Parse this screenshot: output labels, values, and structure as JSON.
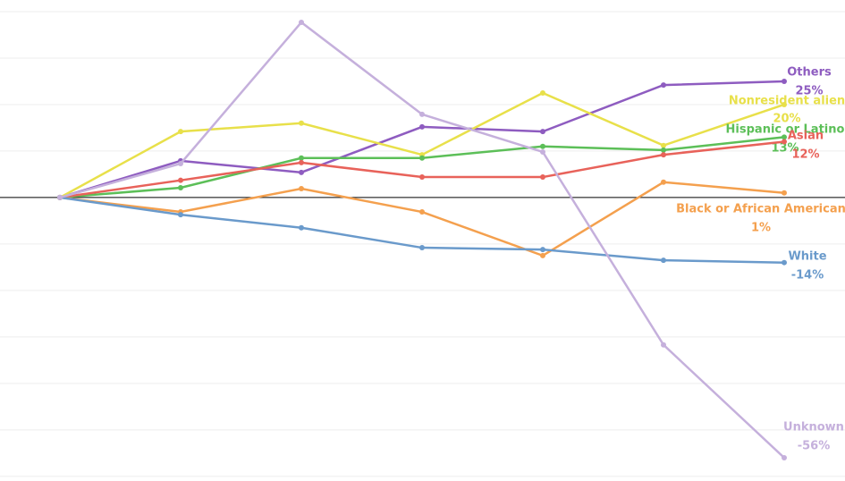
{
  "chart_data": {
    "type": "line",
    "categories": [
      null,
      null,
      null,
      null,
      null,
      null,
      null
    ],
    "ylim": [
      -61,
      42.5
    ],
    "yticks": [
      -60,
      -50,
      -40,
      -30,
      -20,
      -10,
      0,
      10,
      20,
      30,
      40
    ],
    "grid": true,
    "series": [
      {
        "name": "Others",
        "color": "#8e5cc0",
        "values": [
          0,
          7.9,
          5.4,
          15.2,
          14.2,
          24.2,
          25
        ],
        "value_labels": [
          null,
          null,
          null,
          null,
          null,
          null,
          "25%"
        ]
      },
      {
        "name": "Nonresident alien",
        "color": "#e8e04a",
        "values": [
          0,
          14.2,
          16.0,
          9.2,
          22.5,
          11.2,
          20
        ],
        "value_labels": [
          null,
          null,
          null,
          null,
          null,
          null,
          "20%"
        ]
      },
      {
        "name": "Hispanic or Latino",
        "color": "#5cbf58",
        "values": [
          0,
          2.1,
          8.5,
          8.5,
          11.0,
          10.2,
          13
        ],
        "value_labels": [
          null,
          null,
          null,
          null,
          null,
          null,
          "13%"
        ]
      },
      {
        "name": "Asian",
        "color": "#e8625a",
        "values": [
          0,
          3.7,
          7.5,
          4.4,
          4.4,
          9.2,
          12
        ],
        "value_labels": [
          null,
          null,
          null,
          null,
          null,
          null,
          "12%"
        ]
      },
      {
        "name": "Black or African American",
        "color": "#f4a04e",
        "values": [
          0,
          -3.1,
          1.9,
          -3.1,
          -12.5,
          3.3,
          1
        ],
        "value_labels": [
          null,
          null,
          null,
          null,
          null,
          null,
          "1%"
        ]
      },
      {
        "name": "White",
        "color": "#6a9acb",
        "values": [
          0,
          -3.7,
          -6.5,
          -10.8,
          -11.2,
          -13.5,
          -14
        ],
        "value_labels": [
          null,
          null,
          null,
          null,
          null,
          null,
          "-14%"
        ]
      },
      {
        "name": "Unknown",
        "color": "#c5b0dc",
        "values": [
          0,
          7.3,
          37.7,
          17.9,
          9.8,
          -31.7,
          -56
        ],
        "value_labels": [
          null,
          null,
          null,
          null,
          null,
          null,
          "-56%"
        ]
      }
    ]
  }
}
